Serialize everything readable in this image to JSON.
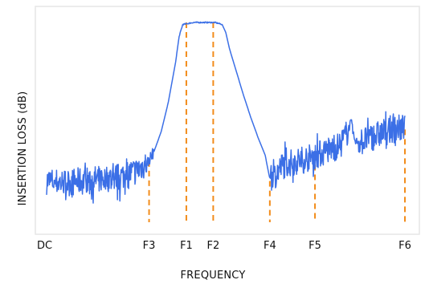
{
  "chart_data": {
    "type": "line",
    "title": "",
    "xlabel": "FREQUENCY",
    "ylabel": "INSERTION LOSS (dB)",
    "x_tick_labels": [
      "DC",
      "F3",
      "F1",
      "F2",
      "F4",
      "F5",
      "F6"
    ],
    "x_ticks": [
      0,
      0.286,
      0.39,
      0.465,
      0.623,
      0.749,
      1.0
    ],
    "ylim": [
      0,
      1
    ],
    "xlim": [
      0,
      1
    ],
    "grid": false,
    "colors": {
      "response": "#3b6fe6",
      "markers": "#f28c1b",
      "frame": "#e6e6e6"
    },
    "series": [
      {
        "values_x": [
          0.0,
          0.05,
          0.1,
          0.15,
          0.2,
          0.25,
          0.28,
          0.3,
          0.32,
          0.34,
          0.36,
          0.37,
          0.38,
          0.41,
          0.44,
          0.47,
          0.49,
          0.5,
          0.51,
          0.53,
          0.55,
          0.57,
          0.59,
          0.61,
          0.622,
          0.63,
          0.64,
          0.66,
          0.7,
          0.74,
          0.78,
          0.82,
          0.84,
          0.85,
          0.86,
          0.88,
          0.92,
          0.96,
          1.0
        ],
        "values_y": [
          0.2,
          0.19,
          0.2,
          0.21,
          0.22,
          0.25,
          0.29,
          0.35,
          0.45,
          0.6,
          0.8,
          0.93,
          0.99,
          1.0,
          1.0,
          1.0,
          0.99,
          0.95,
          0.87,
          0.75,
          0.63,
          0.52,
          0.42,
          0.33,
          0.22,
          0.2,
          0.24,
          0.28,
          0.3,
          0.32,
          0.35,
          0.38,
          0.45,
          0.5,
          0.4,
          0.4,
          0.43,
          0.46,
          0.47
        ]
      }
    ],
    "markers": [
      {
        "x": 0.286,
        "y": 0.3
      },
      {
        "x": 0.39,
        "y": 1.0
      },
      {
        "x": 0.465,
        "y": 1.0
      },
      {
        "x": 0.623,
        "y": 0.2
      },
      {
        "x": 0.749,
        "y": 0.33
      },
      {
        "x": 1.0,
        "y": 0.46
      }
    ]
  }
}
